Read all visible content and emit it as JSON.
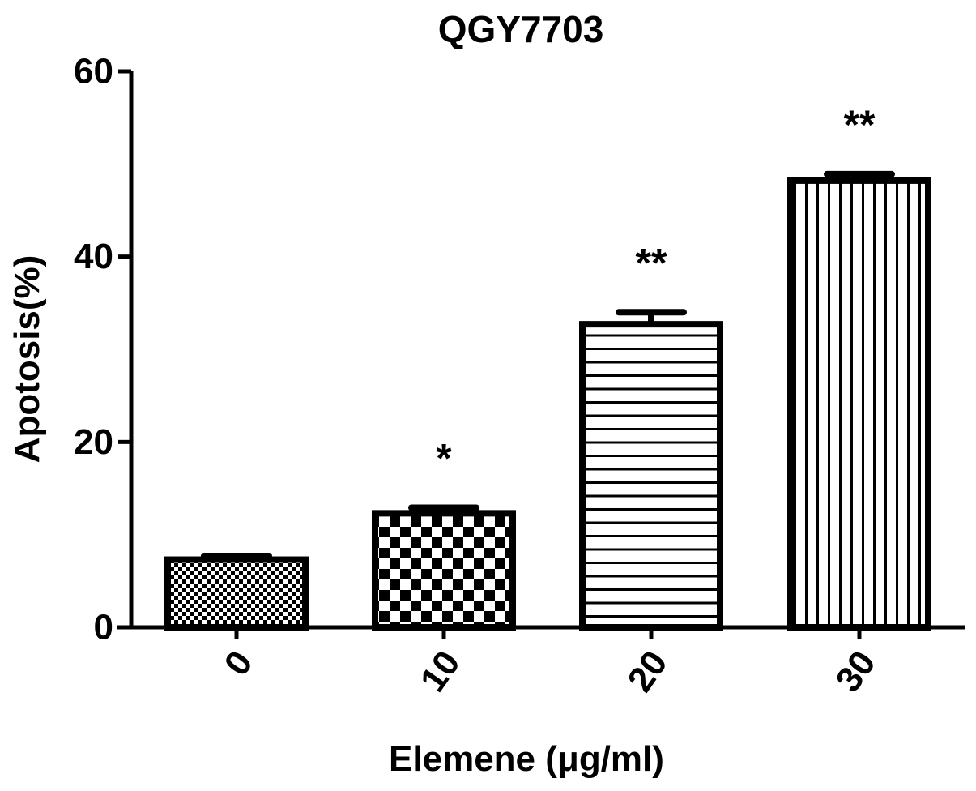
{
  "chart_data": {
    "type": "bar",
    "title": "QGY7703",
    "xlabel": "Elemene (μg/ml)",
    "ylabel": "Apotosis(%)",
    "categories": [
      "0",
      "10",
      "20",
      "30"
    ],
    "values": [
      7.3,
      12.3,
      32.7,
      48.2
    ],
    "errors": [
      0.4,
      0.6,
      1.3,
      0.7
    ],
    "significance": [
      "",
      "*",
      "**",
      "**"
    ],
    "patterns": [
      "fine-checker",
      "checker",
      "horizontal-stripes",
      "vertical-stripes"
    ],
    "ylim": [
      0,
      60
    ],
    "yticks": [
      0,
      20,
      40,
      60
    ],
    "grid": false,
    "legend": "none",
    "colors": {
      "bar_stroke": "#000000",
      "bar_fill": "#ffffff",
      "axis": "#000000"
    }
  }
}
